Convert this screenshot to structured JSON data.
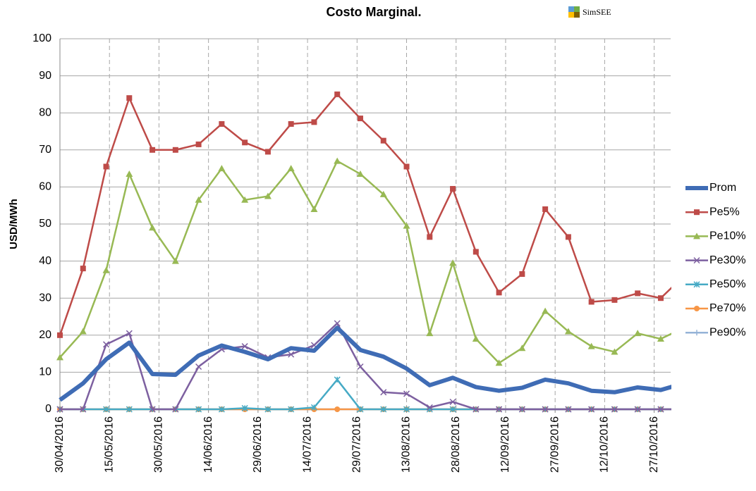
{
  "chart_data": {
    "type": "line",
    "title": "Costo Marginal.",
    "logo": "SimSEE",
    "y_label": "USD/MWh",
    "x": [
      "2016-04-30",
      "2016-05-07",
      "2016-05-14",
      "2016-05-21",
      "2016-05-28",
      "2016-06-04",
      "2016-06-11",
      "2016-06-18",
      "2016-06-25",
      "2016-07-02",
      "2016-07-09",
      "2016-07-16",
      "2016-07-23",
      "2016-07-30",
      "2016-08-06",
      "2016-08-13",
      "2016-08-20",
      "2016-08-27",
      "2016-09-03",
      "2016-09-10",
      "2016-09-17",
      "2016-09-24",
      "2016-10-01",
      "2016-10-08",
      "2016-10-15",
      "2016-10-22",
      "2016-10-29",
      "2016-11-05"
    ],
    "xlim": [
      "2016-04-30",
      "2016-11-01"
    ],
    "xticks": [
      {
        "value": "2016-04-30",
        "label": "30/04/2016"
      },
      {
        "value": "2016-05-15",
        "label": "15/05/2016"
      },
      {
        "value": "2016-05-30",
        "label": "30/05/2016"
      },
      {
        "value": "2016-06-14",
        "label": "14/06/2016"
      },
      {
        "value": "2016-06-29",
        "label": "29/06/2016"
      },
      {
        "value": "2016-07-14",
        "label": "14/07/2016"
      },
      {
        "value": "2016-07-29",
        "label": "29/07/2016"
      },
      {
        "value": "2016-08-13",
        "label": "13/08/2016"
      },
      {
        "value": "2016-08-28",
        "label": "28/08/2016"
      },
      {
        "value": "2016-09-12",
        "label": "12/09/2016"
      },
      {
        "value": "2016-09-27",
        "label": "27/09/2016"
      },
      {
        "value": "2016-10-12",
        "label": "12/10/2016"
      },
      {
        "value": "2016-10-27",
        "label": "27/10/2016"
      }
    ],
    "ylim": [
      0,
      100
    ],
    "yticks": [
      0,
      10,
      20,
      30,
      40,
      50,
      60,
      70,
      80,
      90,
      100
    ],
    "grid": true,
    "series": [
      {
        "name": "Prom",
        "color": "#3f6cb5",
        "width": 6,
        "marker": "none",
        "values": [
          2.5,
          7,
          13.5,
          18,
          9.5,
          9.3,
          14.5,
          17.2,
          15.5,
          13.5,
          16.5,
          15.8,
          22,
          16,
          14.2,
          11,
          6.5,
          8.5,
          6,
          5,
          5.8,
          8,
          7,
          5,
          4.6,
          5.9,
          5.2,
          7
        ]
      },
      {
        "name": "Pe5%",
        "color": "#be4b48",
        "width": 2.5,
        "marker": "square",
        "values": [
          20,
          38,
          65.5,
          84,
          70,
          70,
          71.5,
          77,
          72,
          69.5,
          77,
          77.5,
          85,
          78.5,
          72.5,
          65.5,
          46.5,
          59.5,
          42.5,
          31.5,
          36.5,
          54,
          46.5,
          29,
          29.5,
          31.3,
          30,
          36
        ]
      },
      {
        "name": "Pe10%",
        "color": "#98b954",
        "width": 2.5,
        "marker": "triangle",
        "values": [
          14,
          21,
          37.5,
          63.5,
          49,
          40,
          56.5,
          65,
          56.5,
          57.5,
          65,
          54,
          67,
          63.5,
          58,
          49.5,
          20.5,
          39.5,
          19,
          12.5,
          16.5,
          26.5,
          21,
          17,
          15.5,
          20.5,
          19,
          22
        ]
      },
      {
        "name": "Pe30%",
        "color": "#7d60a0",
        "width": 2.5,
        "marker": "x",
        "values": [
          0,
          0,
          17.5,
          20.5,
          0,
          0,
          11.5,
          16.2,
          17,
          14,
          14.8,
          17.3,
          23.2,
          11.5,
          4.6,
          4.2,
          0.5,
          2,
          0,
          0,
          0,
          0,
          0,
          0,
          0,
          0,
          0,
          0
        ]
      },
      {
        "name": "Pe50%",
        "color": "#46aac5",
        "width": 2.5,
        "marker": "star",
        "values": [
          0,
          0,
          0,
          0,
          0,
          0,
          0,
          0,
          0.3,
          0,
          0,
          0.5,
          8,
          0,
          0,
          0,
          0,
          0,
          0,
          0,
          0,
          0,
          0,
          0,
          0,
          0,
          0,
          0
        ]
      },
      {
        "name": "Pe70%",
        "color": "#f79646",
        "width": 2.5,
        "marker": "circle",
        "values": [
          0,
          0,
          0,
          0,
          0,
          0,
          0,
          0,
          0,
          0,
          0,
          0,
          0,
          0,
          0,
          0,
          0,
          0,
          0,
          0,
          0,
          0,
          0,
          0,
          0,
          0,
          0,
          0
        ]
      },
      {
        "name": "Pe90%",
        "color": "#95b3d7",
        "width": 2.5,
        "marker": "plus",
        "values": [
          0,
          0,
          0,
          0,
          0,
          0,
          0,
          0,
          0,
          0,
          0,
          0,
          0,
          0,
          0,
          0,
          0,
          0,
          0,
          0,
          0,
          0,
          0,
          0,
          0,
          0,
          0,
          0
        ]
      }
    ]
  }
}
